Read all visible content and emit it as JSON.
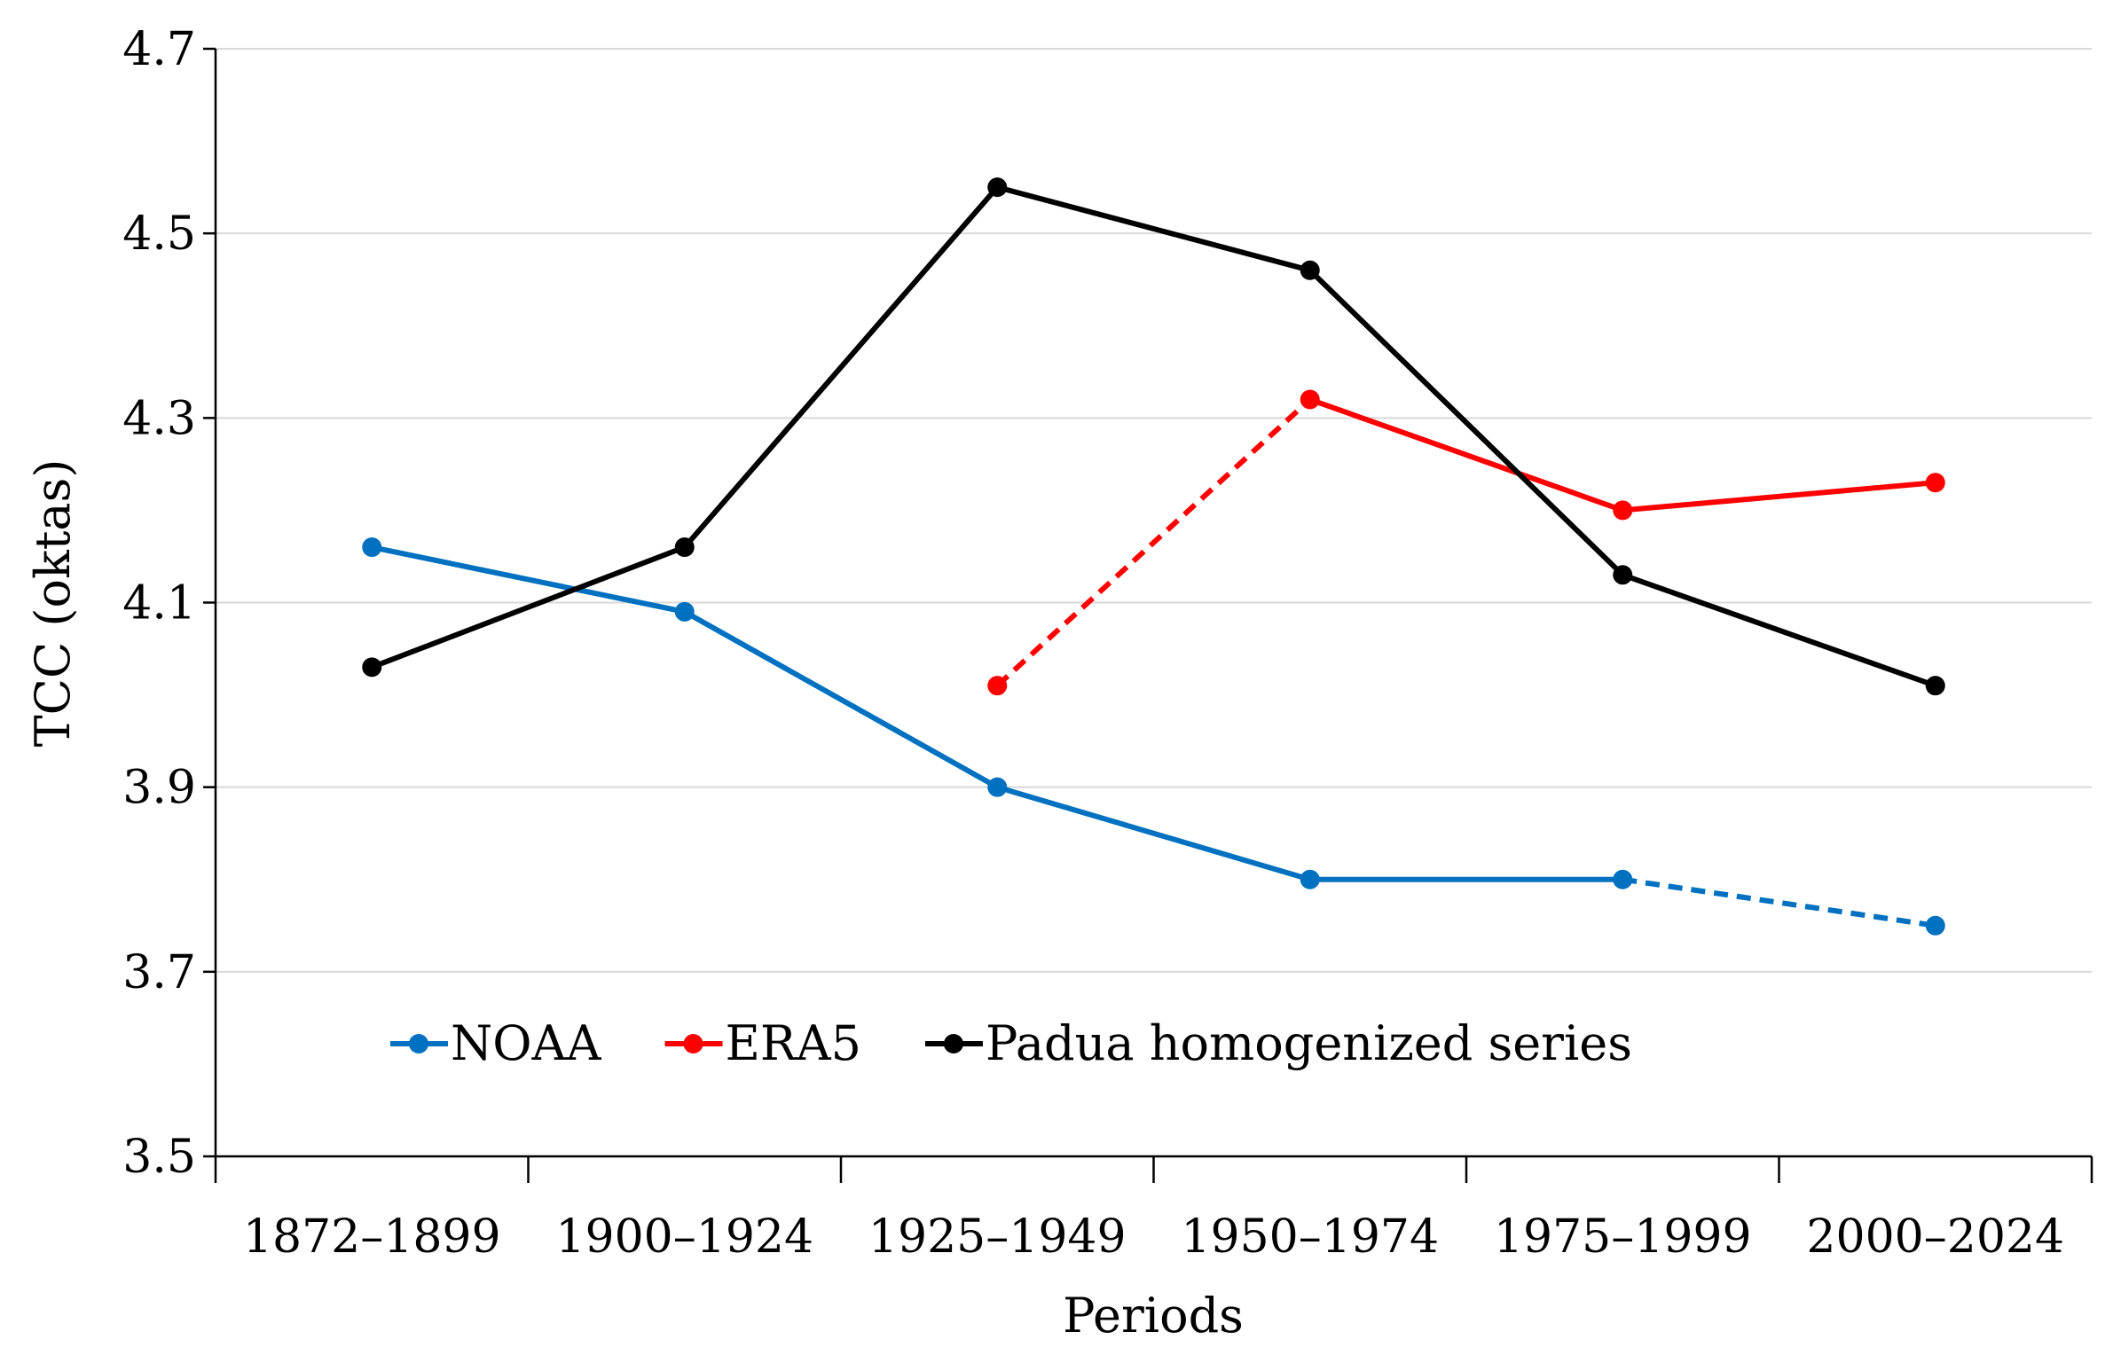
{
  "chart_data": {
    "type": "line",
    "title": "",
    "xlabel": "Periods",
    "ylabel": "TCC (oktas)",
    "ylim": [
      3.5,
      4.7
    ],
    "yticks": [
      "3.5",
      "3.7",
      "3.9",
      "4.1",
      "4.3",
      "4.5",
      "4.7"
    ],
    "ytick_values": [
      3.5,
      3.7,
      3.9,
      4.1,
      4.3,
      4.5,
      4.7
    ],
    "grid": true,
    "legend_placement": "bottom-left inside",
    "categories": [
      "1872–1899",
      "1900–1924",
      "1925–1949",
      "1950–1974",
      "1975–1999",
      "2000–2024"
    ],
    "series": [
      {
        "name": "NOAA",
        "color": "#0070C0",
        "values": [
          4.16,
          4.09,
          3.9,
          3.8,
          3.8,
          3.75
        ],
        "dashed_segments": [
          4
        ]
      },
      {
        "name": "ERA5",
        "color": "#FF0000",
        "values": [
          null,
          null,
          4.01,
          4.32,
          4.2,
          4.23
        ],
        "dashed_segments": [
          2
        ]
      },
      {
        "name": "Padua homogenized series",
        "color": "#000000",
        "values": [
          4.03,
          4.16,
          4.55,
          4.46,
          4.13,
          4.01
        ],
        "dashed_segments": []
      }
    ]
  }
}
